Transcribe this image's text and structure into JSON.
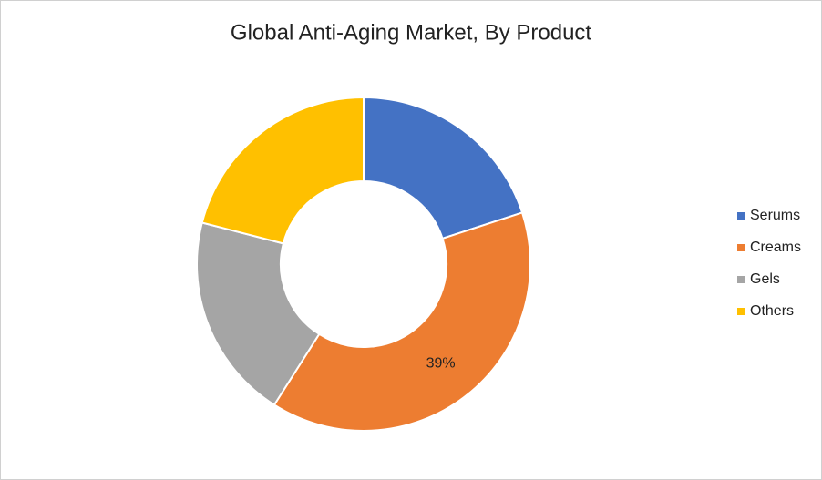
{
  "chart_data": {
    "type": "donut",
    "title": "Global Anti-Aging Market, By Product",
    "categories": [
      "Serums",
      "Creams",
      "Gels",
      "Others"
    ],
    "values": [
      20,
      39,
      20,
      21
    ],
    "value_labels": [
      null,
      "39%",
      null,
      null
    ],
    "colors": [
      "#4472c4",
      "#ed7d31",
      "#a5a5a5",
      "#ffc000"
    ],
    "legend": "right"
  }
}
